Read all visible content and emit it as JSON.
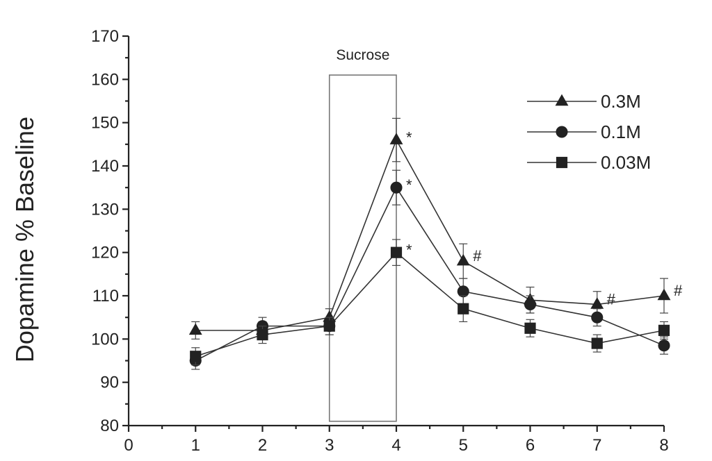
{
  "chart_data": {
    "type": "line",
    "title": "",
    "xlabel": "",
    "ylabel": "Dopamine % Baseline",
    "xlim": [
      0,
      8
    ],
    "ylim": [
      80,
      170
    ],
    "x_ticks": [
      0,
      1,
      2,
      3,
      4,
      5,
      6,
      7,
      8
    ],
    "y_ticks": [
      80,
      90,
      100,
      110,
      120,
      130,
      140,
      150,
      160,
      170
    ],
    "grid": false,
    "legend_position": "top-right",
    "x": [
      1,
      2,
      3,
      4,
      5,
      6,
      7,
      8
    ],
    "series": [
      {
        "name": "0.3M",
        "marker": "triangle",
        "values": [
          102,
          102,
          105,
          146,
          118,
          109,
          108,
          110
        ],
        "errors": [
          2,
          2,
          2,
          5,
          4,
          3,
          3,
          4
        ]
      },
      {
        "name": "0.1M",
        "marker": "circle",
        "values": [
          95,
          103,
          103,
          135,
          111,
          108,
          105,
          98.5
        ],
        "errors": [
          2,
          2,
          2,
          4,
          3,
          2,
          2,
          2
        ]
      },
      {
        "name": "0.03M",
        "marker": "square",
        "values": [
          96,
          101,
          103,
          120,
          107,
          102.5,
          99,
          102
        ],
        "errors": [
          2,
          2,
          2,
          3,
          3,
          2,
          2,
          2
        ]
      }
    ],
    "annotations": [
      {
        "text": "Sucrose",
        "type": "box",
        "x_range": [
          3,
          4
        ],
        "y_range": [
          81,
          161
        ]
      },
      {
        "text": "*",
        "series": "0.3M",
        "x": 4
      },
      {
        "text": "*",
        "series": "0.1M",
        "x": 4
      },
      {
        "text": "*",
        "series": "0.03M",
        "x": 4
      },
      {
        "text": "#",
        "series": "0.3M",
        "x": 5
      },
      {
        "text": "#",
        "series": "0.3M",
        "x": 7
      },
      {
        "text": "#",
        "series": "0.3M",
        "x": 8
      }
    ]
  }
}
